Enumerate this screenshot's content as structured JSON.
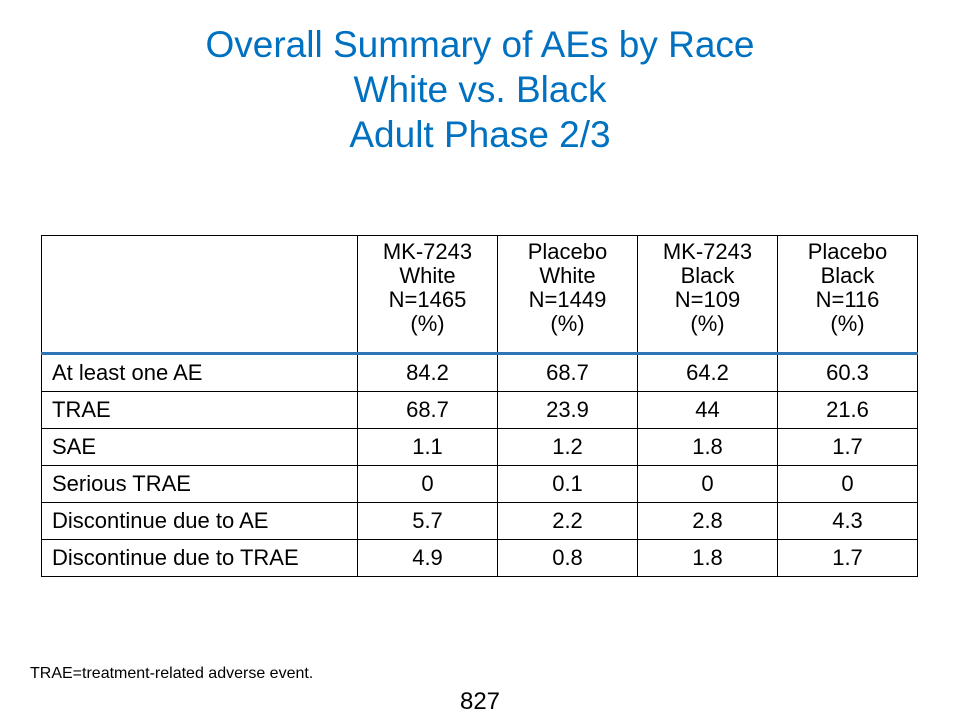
{
  "title": {
    "line1": "Overall Summary of AEs by Race",
    "line2": "White vs. Black",
    "line3": "Adult Phase 2/3"
  },
  "table": {
    "headers": [
      {
        "lines": [
          "MK-7243",
          "White",
          "N=1465",
          "(%)"
        ]
      },
      {
        "lines": [
          "Placebo",
          "White",
          "N=1449",
          "(%)"
        ]
      },
      {
        "lines": [
          "MK-7243",
          "Black",
          "N=109",
          "(%)"
        ]
      },
      {
        "lines": [
          "Placebo",
          "Black",
          "N=116",
          "(%)"
        ]
      }
    ],
    "rows": [
      {
        "label": "At least one AE",
        "values": [
          "84.2",
          "68.7",
          "64.2",
          "60.3"
        ]
      },
      {
        "label": "TRAE",
        "values": [
          "68.7",
          "23.9",
          "44",
          "21.6"
        ]
      },
      {
        "label": "SAE",
        "values": [
          "1.1",
          "1.2",
          "1.8",
          "1.7"
        ]
      },
      {
        "label": "Serious TRAE",
        "values": [
          "0",
          "0.1",
          "0",
          "0"
        ]
      },
      {
        "label": "Discontinue due to AE",
        "values": [
          "5.7",
          "2.2",
          "2.8",
          "4.3"
        ]
      },
      {
        "label": "Discontinue due to TRAE",
        "values": [
          "4.9",
          "0.8",
          "1.8",
          "1.7"
        ]
      }
    ]
  },
  "footnote": "TRAE=treatment-related adverse event.",
  "page_number": "827",
  "colors": {
    "title": "#0070c0",
    "header_rule": "#2e75b6"
  }
}
